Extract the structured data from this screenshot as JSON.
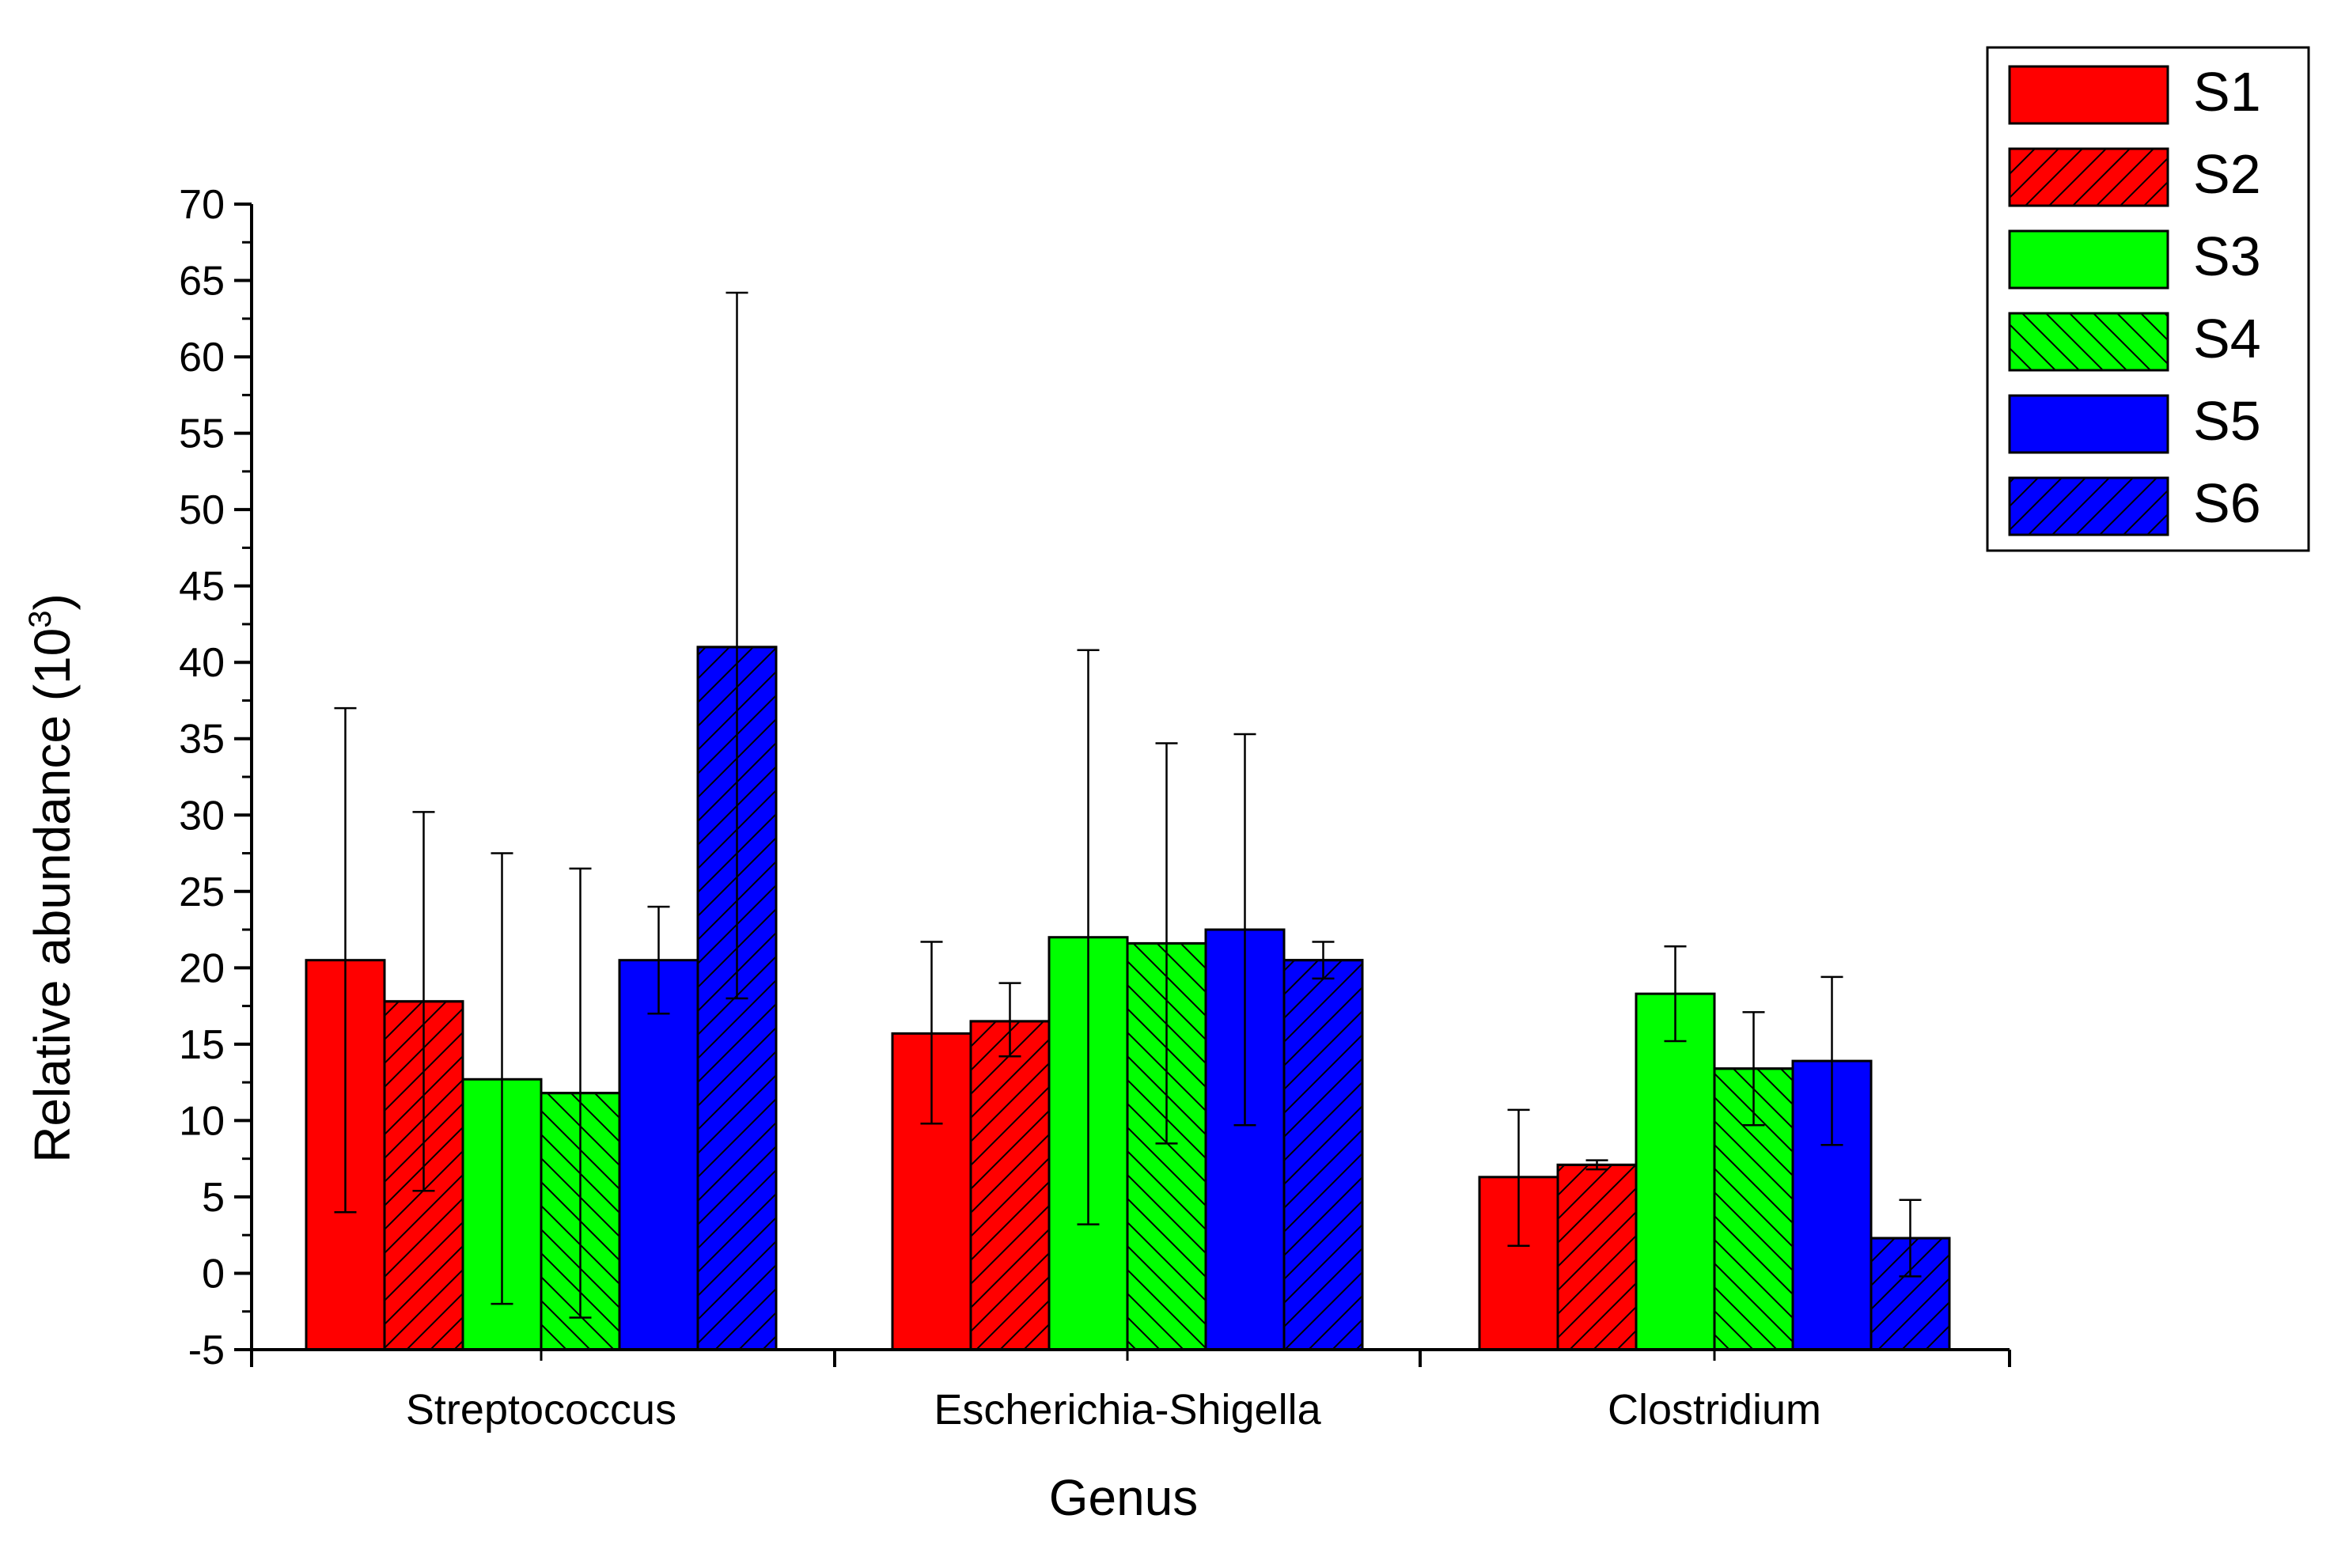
{
  "chart_data": {
    "type": "bar",
    "xlabel": "Genus",
    "ylabel_main": "Relative abundance (10",
    "ylabel_exp": "3",
    "ylabel_close": ")",
    "ylim": [
      -5,
      70
    ],
    "yticks": [
      -5,
      0,
      5,
      10,
      15,
      20,
      25,
      30,
      35,
      40,
      45,
      50,
      55,
      60,
      65,
      70
    ],
    "categories": [
      "Streptococcus",
      "Escherichia-Shigella",
      "Clostridium"
    ],
    "legend_position": "top-right",
    "series": [
      {
        "name": "S1",
        "color": "#ff0000",
        "pattern": "solid",
        "values": [
          20.5,
          15.7,
          6.3
        ],
        "err_high": [
          37.0,
          21.7,
          10.7
        ],
        "err_low": [
          4.0,
          9.8,
          1.8
        ]
      },
      {
        "name": "S2",
        "color": "#ff0000",
        "pattern": "forward-hatch",
        "values": [
          17.8,
          16.5,
          7.1
        ],
        "err_high": [
          30.2,
          19.0,
          7.4
        ],
        "err_low": [
          5.4,
          14.2,
          6.8
        ]
      },
      {
        "name": "S3",
        "color": "#00ff00",
        "pattern": "solid",
        "values": [
          12.7,
          22.0,
          18.3
        ],
        "err_high": [
          27.5,
          40.8,
          21.4
        ],
        "err_low": [
          -2.0,
          3.2,
          15.2
        ]
      },
      {
        "name": "S4",
        "color": "#00ff00",
        "pattern": "back-hatch",
        "values": [
          11.8,
          21.6,
          13.4
        ],
        "err_high": [
          26.5,
          34.7,
          17.1
        ],
        "err_low": [
          -2.9,
          8.5,
          9.7
        ]
      },
      {
        "name": "S5",
        "color": "#0000ff",
        "pattern": "solid",
        "values": [
          20.5,
          22.5,
          13.9
        ],
        "err_high": [
          24.0,
          35.3,
          19.4
        ],
        "err_low": [
          17.0,
          9.7,
          8.4
        ]
      },
      {
        "name": "S6",
        "color": "#0000ff",
        "pattern": "forward-hatch",
        "values": [
          41.0,
          20.5,
          2.3
        ],
        "err_high": [
          64.2,
          21.7,
          4.8
        ],
        "err_low": [
          18.0,
          19.3,
          -0.2
        ]
      }
    ]
  }
}
